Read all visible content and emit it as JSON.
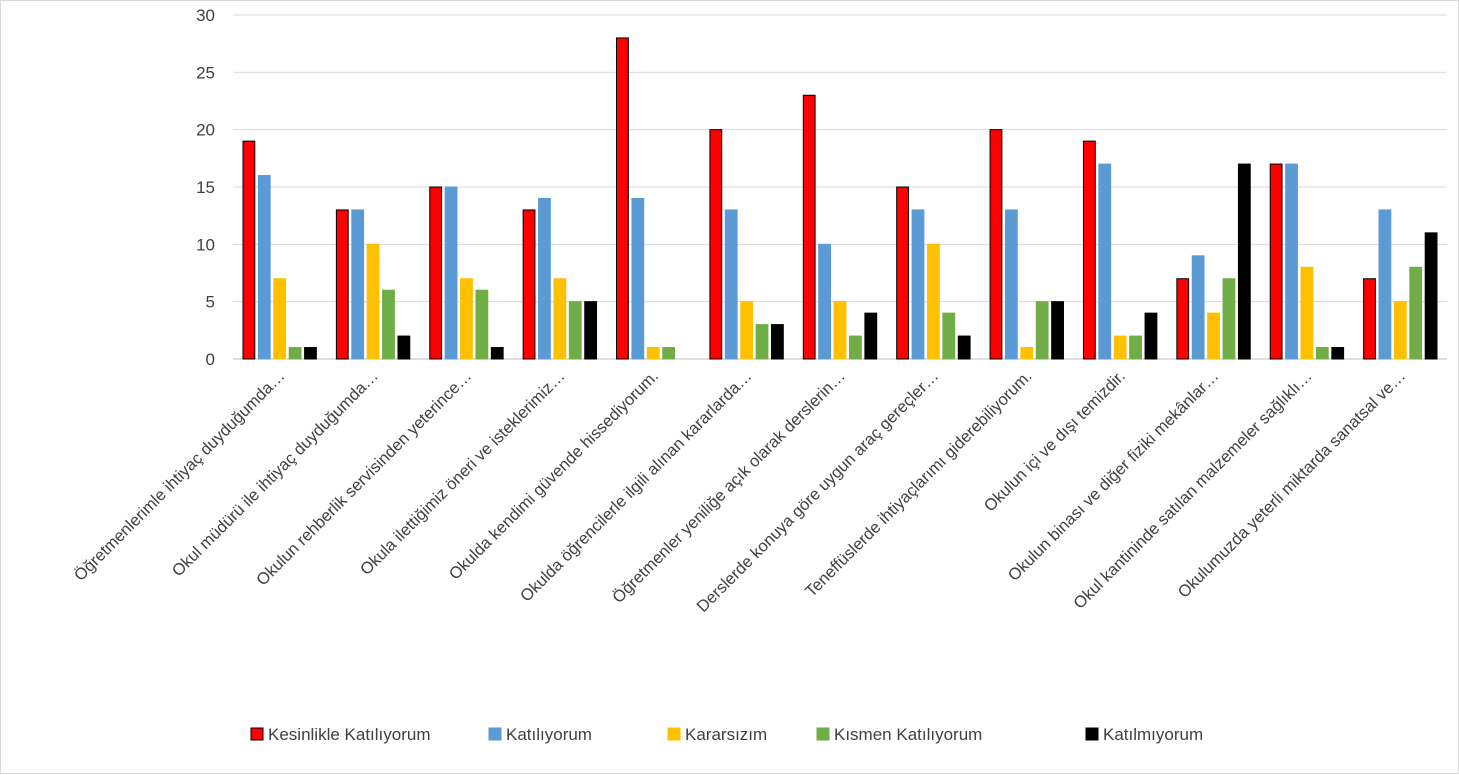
{
  "chart_data": {
    "type": "bar",
    "title": "",
    "xlabel": "",
    "ylabel": "",
    "ylim": [
      0,
      30
    ],
    "yticks": [
      0,
      5,
      10,
      15,
      20,
      25,
      30
    ],
    "grid": "horizontal",
    "legend_position": "bottom",
    "categories": [
      "Öğretmenlerimle ihtiyaç duyduğumda…",
      "Okul müdürü ile ihtiyaç duyduğumda…",
      "Okulun rehberlik servisinden yeterince…",
      "Okula ilettiğimiz öneri ve isteklerimiz…",
      "Okulda kendimi güvende hissediyorum.",
      "Okulda öğrencilerle ilgili alınan kararlarda…",
      "Öğretmenler yeniliğe açık olarak derslerin…",
      "Derslerde konuya göre uygun araç gereçler…",
      "Teneffüslerde ihtiyaçlarımı giderebiliyorum.",
      "Okulun içi ve dışı temizdir.",
      "Okulun binası ve diğer fiziki mekânlar…",
      "Okul kantininde satılan malzemeler sağlıklı…",
      "Okulumuzda yeterli miktarda sanatsal ve…"
    ],
    "series": [
      {
        "name": "Kesinlikle Katılıyorum",
        "color": "#ff0000",
        "border": "#000000",
        "values": [
          19,
          13,
          15,
          13,
          28,
          20,
          23,
          15,
          20,
          19,
          7,
          17,
          7
        ]
      },
      {
        "name": "Katılıyorum",
        "color": "#5b9bd5",
        "border": "#5b9bd5",
        "values": [
          16,
          13,
          15,
          14,
          14,
          13,
          10,
          13,
          13,
          17,
          9,
          17,
          13
        ]
      },
      {
        "name": "Kararsızım",
        "color": "#ffc000",
        "border": "#ffc000",
        "values": [
          7,
          10,
          7,
          7,
          1,
          5,
          5,
          10,
          1,
          2,
          4,
          8,
          5
        ]
      },
      {
        "name": "Kısmen Katılıyorum",
        "color": "#70ad47",
        "border": "#70ad47",
        "values": [
          1,
          6,
          6,
          5,
          1,
          3,
          2,
          4,
          5,
          2,
          7,
          1,
          8
        ]
      },
      {
        "name": "Katılmıyorum",
        "color": "#000000",
        "border": "#000000",
        "values": [
          1,
          2,
          1,
          5,
          0,
          3,
          4,
          2,
          5,
          4,
          17,
          1,
          11
        ]
      }
    ],
    "gridline_color": "#d9d9d9",
    "axis_color": "#bfbfbf"
  }
}
